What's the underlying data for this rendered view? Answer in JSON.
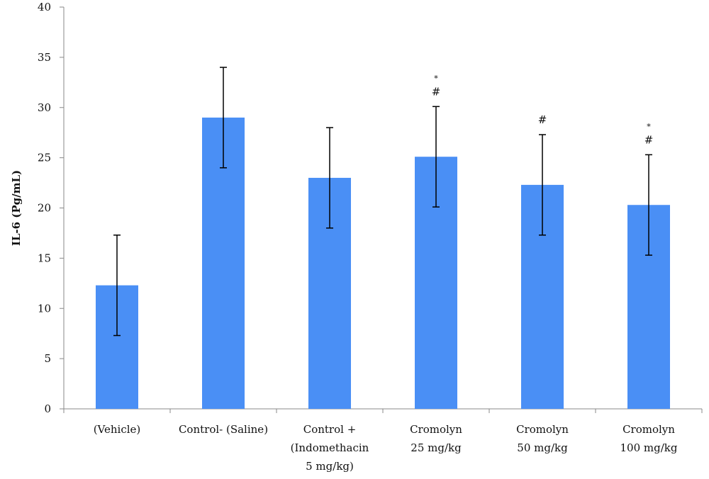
{
  "chart_data": {
    "type": "bar",
    "title": "",
    "xlabel": "",
    "ylabel": "IL-6 (Pg/mL)",
    "ylim": [
      0,
      40
    ],
    "yticks": [
      0,
      5,
      10,
      15,
      20,
      25,
      30,
      35,
      40
    ],
    "grid": false,
    "bar_color": "#4a8ff5",
    "categories": [
      [
        "(Vehicle)"
      ],
      [
        "Control- (Saline)"
      ],
      [
        "Control +",
        "(Indomethacin",
        "5 mg/kg)"
      ],
      [
        "Cromolyn",
        "25 mg/kg"
      ],
      [
        "Cromolyn",
        "50 mg/kg"
      ],
      [
        "Cromolyn",
        "100 mg/kg"
      ]
    ],
    "series": [
      {
        "values": [
          12.3,
          29.0,
          23.0,
          25.1,
          22.3,
          20.3
        ],
        "error": [
          5.0,
          5.0,
          5.0,
          5.0,
          5.0,
          5.0
        ]
      }
    ],
    "annotations": [
      [
        "",
        ""
      ],
      [
        "",
        ""
      ],
      [
        "",
        ""
      ],
      [
        "*",
        "#"
      ],
      [
        "",
        "#"
      ],
      [
        "*",
        "#"
      ]
    ]
  }
}
